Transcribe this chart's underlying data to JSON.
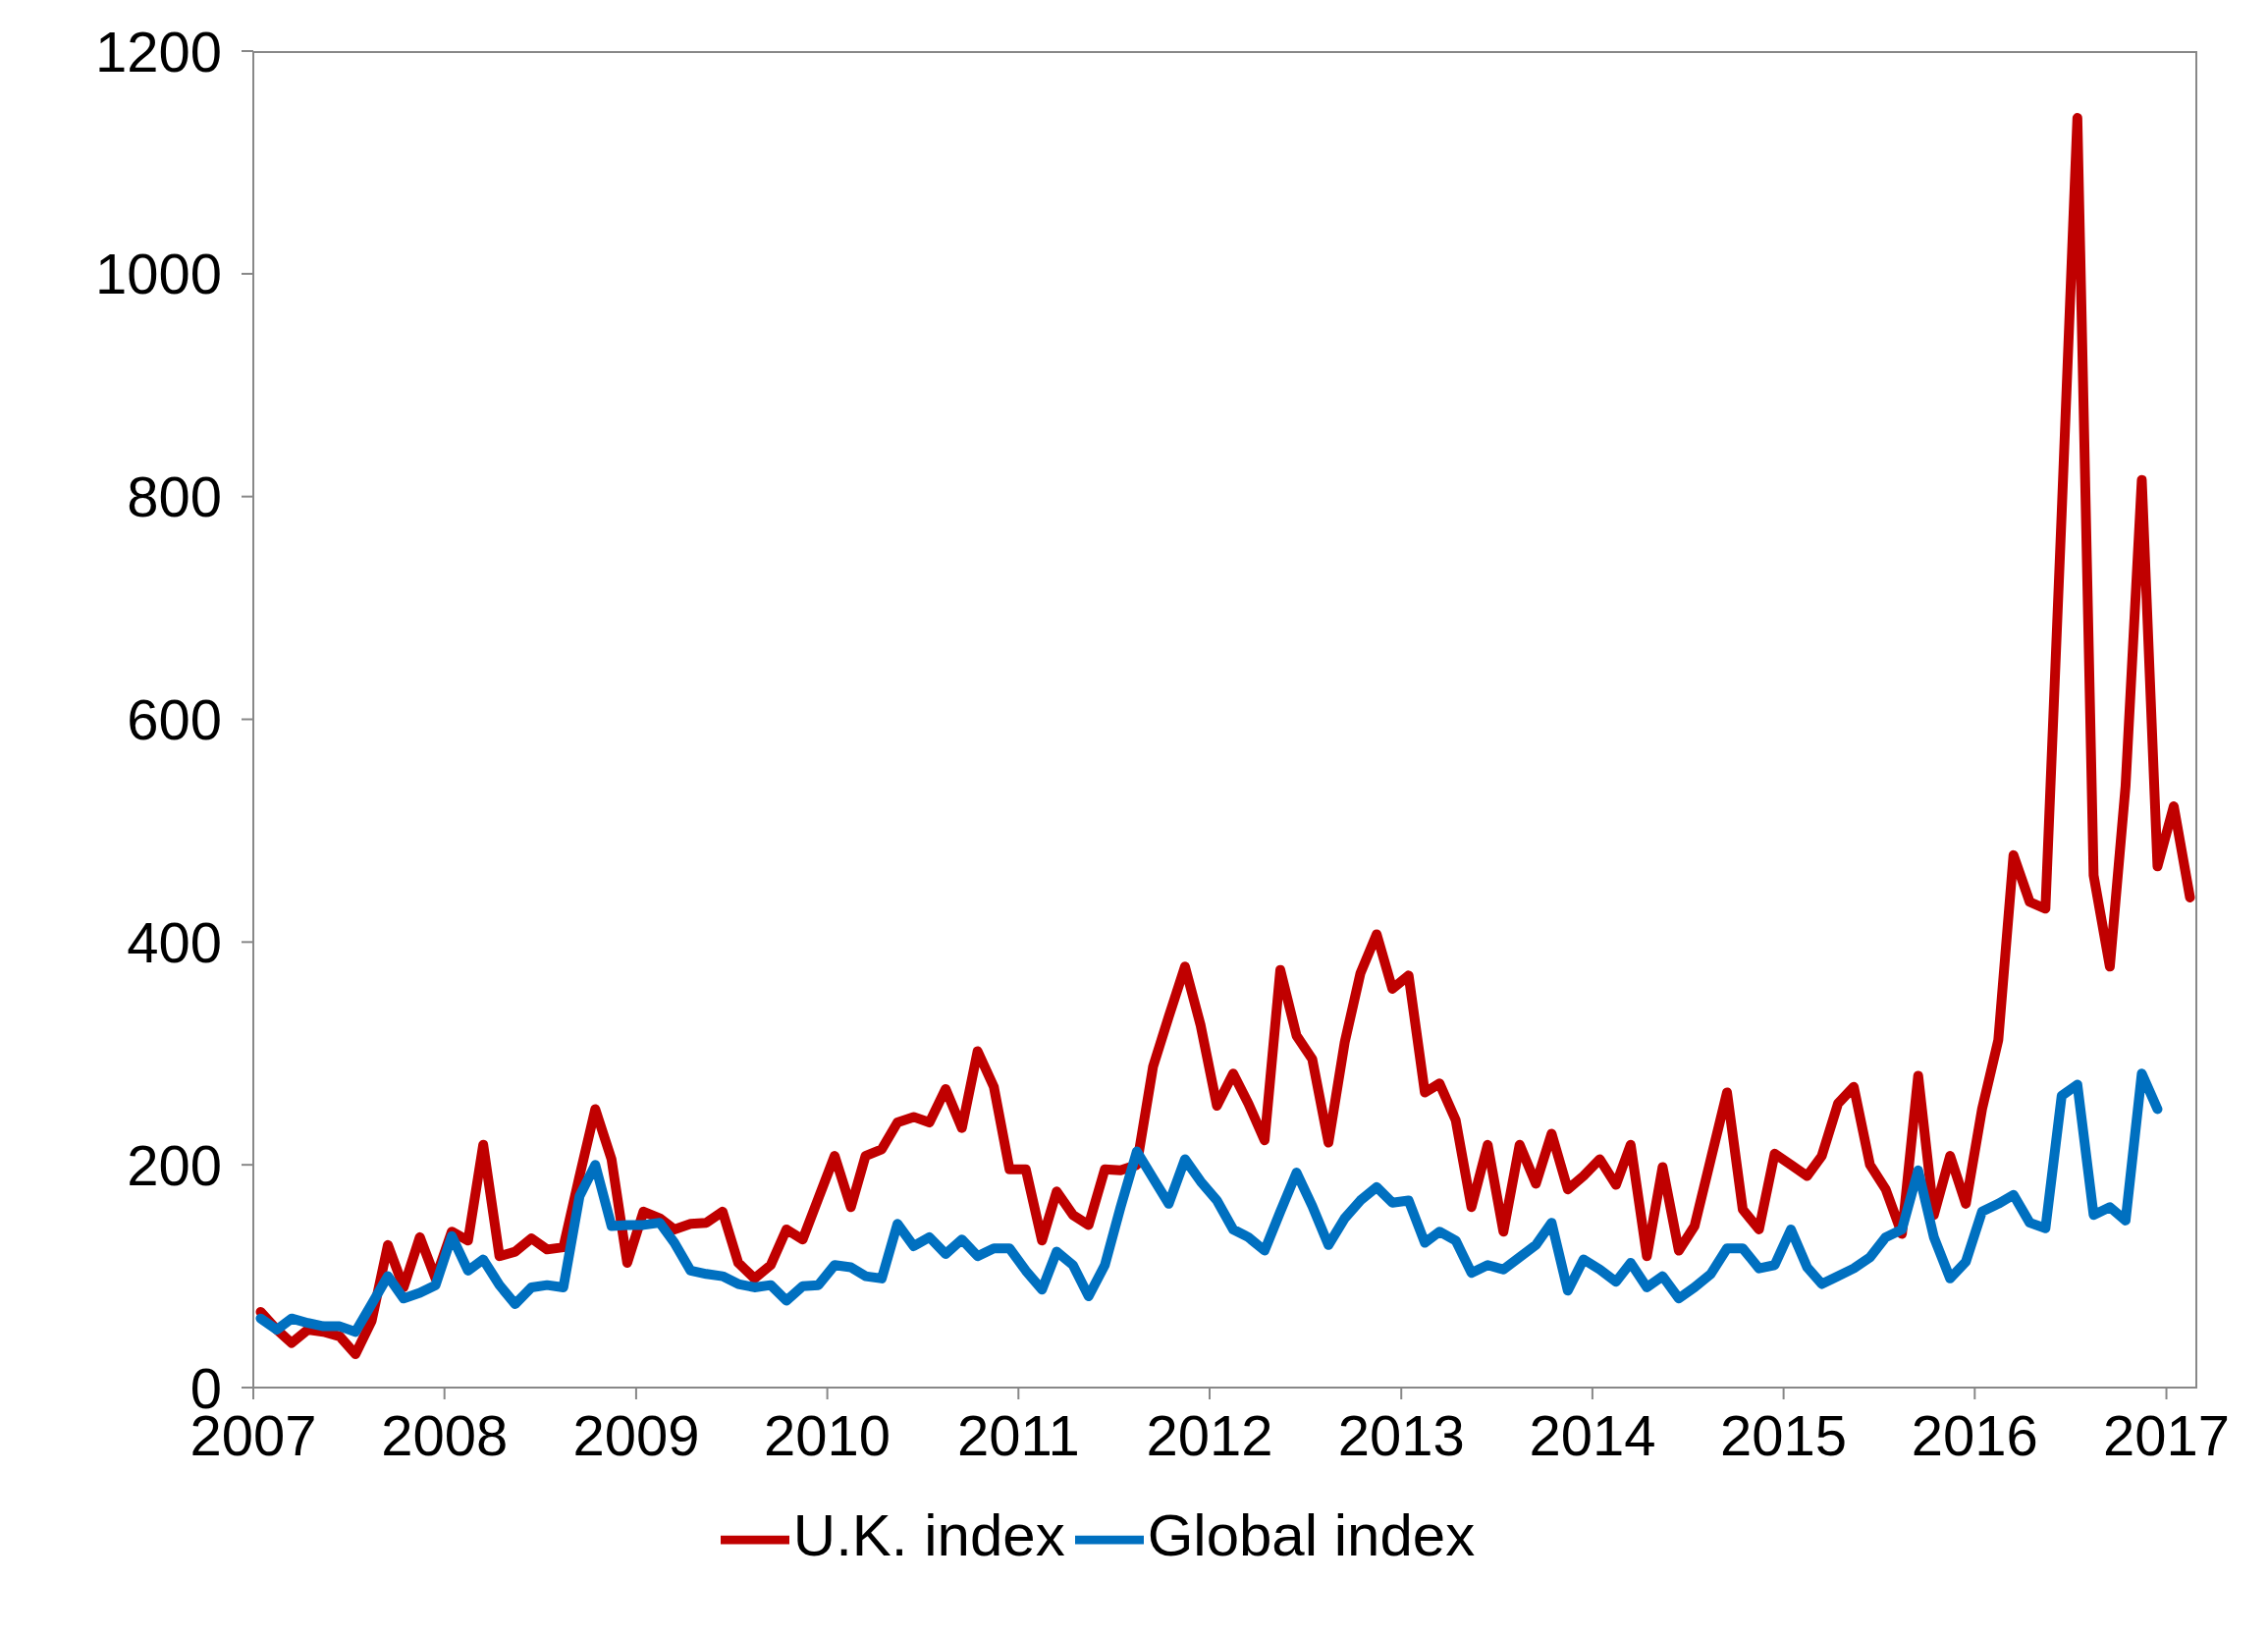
{
  "chart_data": {
    "type": "line",
    "x": [
      "2007-01-15",
      "2007-02-15",
      "2007-03-15",
      "2007-04-15",
      "2007-05-15",
      "2007-06-15",
      "2007-07-15",
      "2007-08-15",
      "2007-09-15",
      "2007-10-15",
      "2007-11-15",
      "2007-12-15",
      "2008-01-15",
      "2008-02-15",
      "2008-03-15",
      "2008-04-15",
      "2008-05-15",
      "2008-06-15",
      "2008-07-15",
      "2008-08-15",
      "2008-09-15",
      "2008-10-15",
      "2008-11-15",
      "2008-12-15",
      "2009-01-15",
      "2009-02-15",
      "2009-03-15",
      "2009-04-15",
      "2009-05-15",
      "2009-06-15",
      "2009-07-15",
      "2009-08-15",
      "2009-09-15",
      "2009-10-15",
      "2009-11-15",
      "2009-12-15",
      "2010-01-15",
      "2010-02-15",
      "2010-03-15",
      "2010-04-15",
      "2010-05-15",
      "2010-06-15",
      "2010-07-15",
      "2010-08-15",
      "2010-09-15",
      "2010-10-15",
      "2010-11-15",
      "2010-12-15",
      "2011-01-15",
      "2011-02-15",
      "2011-03-15",
      "2011-04-15",
      "2011-05-15",
      "2011-06-15",
      "2011-07-15",
      "2011-08-15",
      "2011-09-15",
      "2011-10-15",
      "2011-11-15",
      "2011-12-15",
      "2012-01-15",
      "2012-02-15",
      "2012-03-15",
      "2012-04-15",
      "2012-05-15",
      "2012-06-15",
      "2012-07-15",
      "2012-08-15",
      "2012-09-15",
      "2012-10-15",
      "2012-11-15",
      "2012-12-15",
      "2013-01-15",
      "2013-02-15",
      "2013-03-15",
      "2013-04-15",
      "2013-05-15",
      "2013-06-15",
      "2013-07-15",
      "2013-08-15",
      "2013-09-15",
      "2013-10-15",
      "2013-11-15",
      "2013-12-15",
      "2014-01-15",
      "2014-02-15",
      "2014-03-15",
      "2014-04-15",
      "2014-05-15",
      "2014-06-15",
      "2014-07-15",
      "2014-08-15",
      "2014-09-15",
      "2014-10-15",
      "2014-11-15",
      "2014-12-15",
      "2015-01-15",
      "2015-02-15",
      "2015-03-15",
      "2015-04-15",
      "2015-05-15",
      "2015-06-15",
      "2015-07-15",
      "2015-08-15",
      "2015-09-15",
      "2015-10-15",
      "2015-11-15",
      "2015-12-15",
      "2016-01-15",
      "2016-02-15",
      "2016-03-15",
      "2016-04-15",
      "2016-05-15",
      "2016-06-15",
      "2016-07-15",
      "2016-08-15",
      "2016-09-15",
      "2016-10-15",
      "2016-11-15",
      "2016-12-15",
      "2017-01-15",
      "2017-02-15"
    ],
    "series": [
      {
        "name": "U.K. index",
        "color": "#c00000",
        "values": [
          68,
          52,
          40,
          52,
          50,
          46,
          30,
          60,
          128,
          90,
          135,
          98,
          140,
          132,
          218,
          118,
          122,
          134,
          124,
          126,
          190,
          250,
          205,
          112,
          158,
          152,
          142,
          147,
          148,
          158,
          112,
          98,
          110,
          142,
          133,
          170,
          208,
          162,
          208,
          214,
          238,
          243,
          238,
          268,
          233,
          302,
          270,
          196,
          196,
          132,
          176,
          155,
          146,
          196,
          195,
          200,
          288,
          333,
          378,
          325,
          253,
          282,
          255,
          222,
          375,
          316,
          295,
          220,
          310,
          372,
          407,
          358,
          370,
          265,
          273,
          240,
          162,
          218,
          140,
          218,
          183,
          228,
          178,
          190,
          205,
          182,
          218,
          118,
          198,
          123,
          145,
          205,
          265,
          160,
          142,
          210,
          200,
          190,
          208,
          255,
          270,
          200,
          178,
          138,
          280,
          155,
          208,
          165,
          250,
          312,
          478,
          436,
          430,
          785,
          1140,
          460,
          378,
          540,
          815,
          468,
          522,
          440
        ]
      },
      {
        "name": "Global index",
        "color": "#0070c0",
        "values": [
          62,
          52,
          62,
          58,
          55,
          55,
          50,
          75,
          100,
          80,
          85,
          92,
          136,
          105,
          115,
          92,
          75,
          90,
          92,
          90,
          172,
          200,
          145,
          146,
          146,
          148,
          130,
          105,
          102,
          100,
          93,
          90,
          92,
          78,
          91,
          92,
          110,
          108,
          100,
          98,
          147,
          127,
          135,
          120,
          133,
          118,
          125,
          125,
          105,
          88,
          122,
          110,
          82,
          110,
          162,
          212,
          188,
          165,
          205,
          185,
          168,
          142,
          135,
          123,
          158,
          193,
          163,
          128,
          152,
          168,
          180,
          166,
          168,
          130,
          140,
          132,
          103,
          110,
          106,
          117,
          128,
          148,
          87,
          115,
          106,
          95,
          112,
          90,
          100,
          80,
          90,
          102,
          125,
          125,
          107,
          110,
          142,
          108,
          93,
          100,
          107,
          117,
          135,
          142,
          195,
          135,
          98,
          113,
          158,
          165,
          173,
          148,
          143,
          262,
          272,
          155,
          162,
          150,
          282,
          250,
          null,
          null
        ]
      }
    ],
    "xlim": [
      "2007-01-01",
      "2017-03-01"
    ],
    "xticks": [
      "2007",
      "2008",
      "2009",
      "2010",
      "2011",
      "2012",
      "2013",
      "2014",
      "2015",
      "2016",
      "2017"
    ],
    "ylim": [
      0,
      1200
    ],
    "yticks": [
      0,
      200,
      400,
      600,
      800,
      1000,
      1200
    ],
    "legend": "bottom",
    "grid": false
  }
}
